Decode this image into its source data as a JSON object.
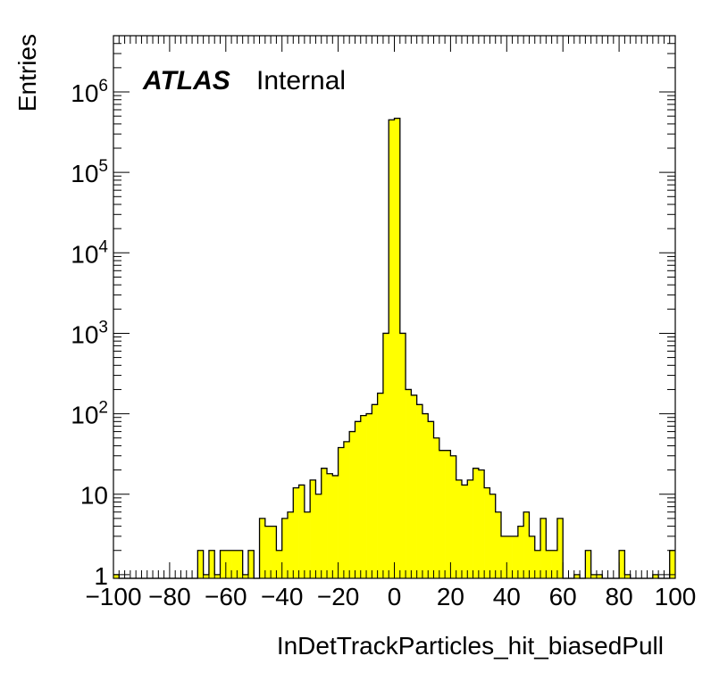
{
  "chart_data": {
    "type": "bar",
    "title": "",
    "xlabel": "InDetTrackParticles_hit_biasedPull",
    "ylabel": "Entries",
    "xlim": [
      -100,
      100
    ],
    "ylim": [
      0.9,
      5000000
    ],
    "log_y": true,
    "bin_width": 2,
    "fill_color": "#ffff00",
    "line_color": "#000000",
    "legend": {
      "brand": "ATLAS",
      "label": "Internal",
      "placement": "top-left"
    },
    "x_tick_labels": [
      "−100",
      "−80",
      "−60",
      "−40",
      "−20",
      "0",
      "20",
      "40",
      "60",
      "80",
      "100"
    ],
    "y_tick_labels": [
      {
        "value": 1,
        "base": "1",
        "exp": ""
      },
      {
        "value": 10,
        "base": "10",
        "exp": ""
      },
      {
        "value": 100,
        "base": "10",
        "exp": "2"
      },
      {
        "value": 1000,
        "base": "10",
        "exp": "3"
      },
      {
        "value": 10000,
        "base": "10",
        "exp": "4"
      },
      {
        "value": 100000,
        "base": "10",
        "exp": "5"
      },
      {
        "value": 1000000,
        "base": "10",
        "exp": "6"
      }
    ],
    "bin_edges_start": [
      -100,
      -98,
      -96,
      -94,
      -92,
      -90,
      -88,
      -86,
      -84,
      -82,
      -80,
      -78,
      -76,
      -74,
      -72,
      -70,
      -68,
      -66,
      -64,
      -62,
      -60,
      -58,
      -56,
      -54,
      -52,
      -50,
      -48,
      -46,
      -44,
      -42,
      -40,
      -38,
      -36,
      -34,
      -32,
      -30,
      -28,
      -26,
      -24,
      -22,
      -20,
      -18,
      -16,
      -14,
      -12,
      -10,
      -8,
      -6,
      -4,
      -2,
      0,
      2,
      4,
      6,
      8,
      10,
      12,
      14,
      16,
      18,
      20,
      22,
      24,
      26,
      28,
      30,
      32,
      34,
      36,
      38,
      40,
      42,
      44,
      46,
      48,
      50,
      52,
      54,
      56,
      58,
      60,
      62,
      64,
      66,
      68,
      70,
      72,
      74,
      76,
      78,
      80,
      82,
      84,
      86,
      88,
      90,
      92,
      94,
      96,
      98
    ],
    "values": [
      1,
      0,
      0,
      0,
      0,
      0,
      0,
      0,
      0,
      0,
      0,
      0,
      0,
      0,
      0,
      2,
      1,
      2,
      1,
      2,
      2,
      2,
      2,
      1,
      2,
      0,
      5,
      4,
      4,
      2,
      5,
      6,
      12,
      13,
      6,
      15,
      10,
      21,
      18,
      17,
      38,
      45,
      60,
      80,
      95,
      100,
      130,
      180,
      1000,
      450000,
      470000,
      1000,
      200,
      170,
      130,
      100,
      80,
      50,
      35,
      35,
      30,
      15,
      13,
      15,
      21,
      20,
      12,
      10,
      6,
      3,
      3,
      3,
      4,
      6,
      3,
      2,
      5,
      2,
      2,
      5,
      0,
      0,
      1,
      0,
      2,
      1,
      1,
      0,
      0,
      0,
      2,
      1,
      0,
      0,
      0,
      0,
      1,
      0,
      0,
      2
    ]
  }
}
